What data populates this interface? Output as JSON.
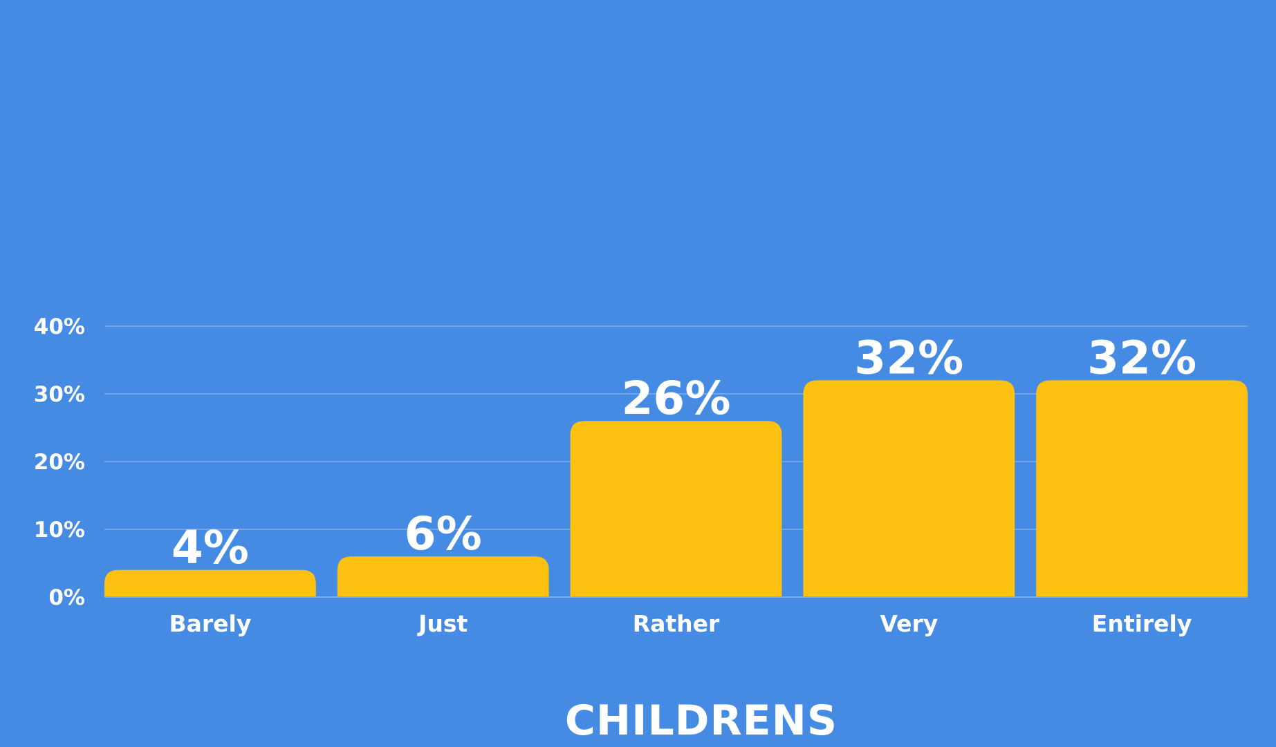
{
  "colors": {
    "background": "#468be3",
    "bar": "#fdc112",
    "grid": "#7eaef0",
    "text": "#ffffff"
  },
  "chart_data": {
    "type": "bar",
    "title": "",
    "xlabel": "CHILDRENS",
    "ylabel": "",
    "ylim": [
      0,
      40
    ],
    "y_ticks": [
      0,
      10,
      20,
      30,
      40
    ],
    "y_tick_labels": [
      "0%",
      "10%",
      "20%",
      "30%",
      "40%"
    ],
    "grid": true,
    "legend": "none",
    "categories": [
      "Barely",
      "Just",
      "Rather",
      "Very",
      "Entirely"
    ],
    "values": [
      4,
      6,
      26,
      32,
      32
    ],
    "value_labels": [
      "4%",
      "6%",
      "26%",
      "32%",
      "32%"
    ]
  }
}
